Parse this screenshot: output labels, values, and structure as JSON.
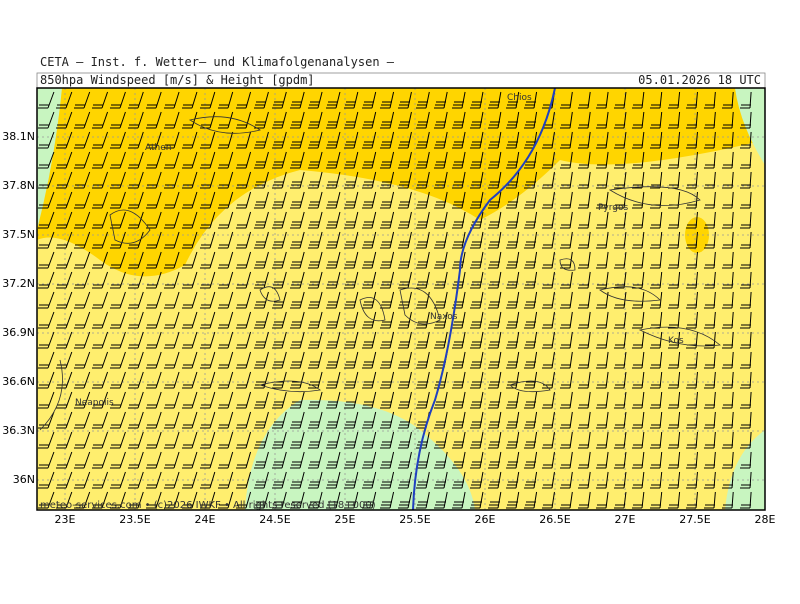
{
  "header": {
    "institute": "CETA – Inst. f. Wetter– und Klimafolgenanalysen –",
    "product": "850hpa Windspeed [m/s] & Height [gpdm]",
    "valid_time": "05.01.2026 18 UTC"
  },
  "map": {
    "lon_labels": [
      "23E",
      "23.5E",
      "24E",
      "24.5E",
      "25E",
      "25.5E",
      "26E",
      "26.5E",
      "27E",
      "27.5E",
      "28E"
    ],
    "lat_labels": [
      "38.1N",
      "37.8N",
      "37.5N",
      "37.2N",
      "36.9N",
      "36.6N",
      "36.3N",
      "36N"
    ],
    "places": [
      "Chios",
      "Athen",
      "Pyrgos",
      "Naxos",
      "Kos",
      "Neapolis"
    ]
  },
  "footer": "meteo-services.com • (c)2026 IWKF • All rights reserved (18+000)"
}
